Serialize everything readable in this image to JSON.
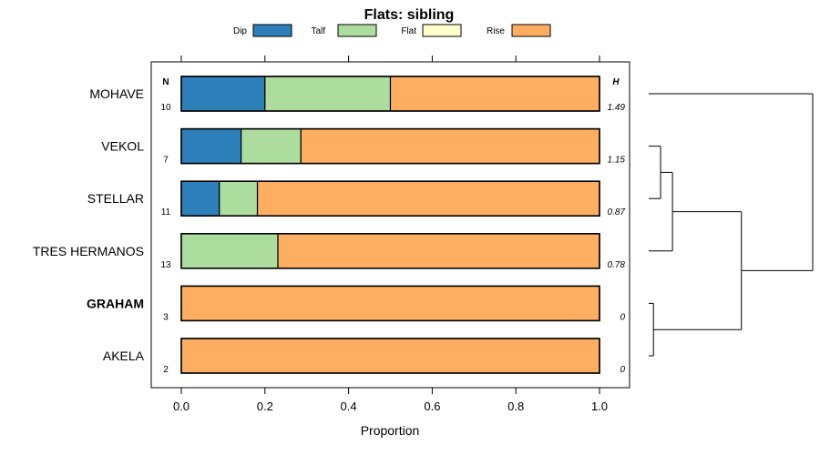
{
  "chart_data": {
    "type": "bar",
    "orientation": "horizontal",
    "stacked": true,
    "title": "Flats: sibling",
    "xlabel": "Proportion",
    "ylabel": "",
    "xlim": [
      0,
      1
    ],
    "x_ticks": [
      "0.0",
      "0.2",
      "0.4",
      "0.6",
      "0.8",
      "1.0"
    ],
    "legend": {
      "placement": "top",
      "entries": [
        {
          "name": "Dip",
          "color": "#2c7fb8"
        },
        {
          "name": "Talf",
          "color": "#addd9e"
        },
        {
          "name": "Flat",
          "color": "#ffffcc"
        },
        {
          "name": "Rise",
          "color": "#fdae61"
        }
      ]
    },
    "n_header": "N",
    "h_header": "H",
    "categories": [
      "MOHAVE",
      "VEKOL",
      "STELLAR",
      "TRES HERMANOS",
      "GRAHAM",
      "AKELA"
    ],
    "highlighted": [
      "GRAHAM"
    ],
    "n": [
      "10",
      "7",
      "11",
      "13",
      "3",
      "2"
    ],
    "h": [
      "1.49",
      "1.15",
      "0.87",
      "0.78",
      "0",
      "0"
    ],
    "series": [
      {
        "name": "Dip",
        "values": [
          0.2,
          0.143,
          0.091,
          0,
          0,
          0
        ]
      },
      {
        "name": "Talf",
        "values": [
          0.3,
          0.143,
          0.091,
          0.231,
          0,
          0
        ]
      },
      {
        "name": "Flat",
        "values": [
          0,
          0,
          0,
          0,
          0,
          0
        ]
      },
      {
        "name": "Rise",
        "values": [
          0.5,
          0.714,
          0.818,
          0.769,
          1,
          1
        ]
      }
    ],
    "dendrogram": {
      "merges": [
        {
          "left": "VEKOL",
          "right": "STELLAR",
          "height": 0.05
        },
        {
          "left": "GRAHAM",
          "right": "AKELA",
          "height": 0.02
        },
        {
          "left": "VEKOL+STELLAR",
          "right": "TRES HERMANOS",
          "height": 0.1
        },
        {
          "left": "VEKOL+STELLAR+TRES HERMANOS",
          "right": "GRAHAM+AKELA",
          "height": 0.39
        },
        {
          "left": "MOHAVE",
          "right": "rest",
          "height": 0.69
        }
      ]
    }
  }
}
